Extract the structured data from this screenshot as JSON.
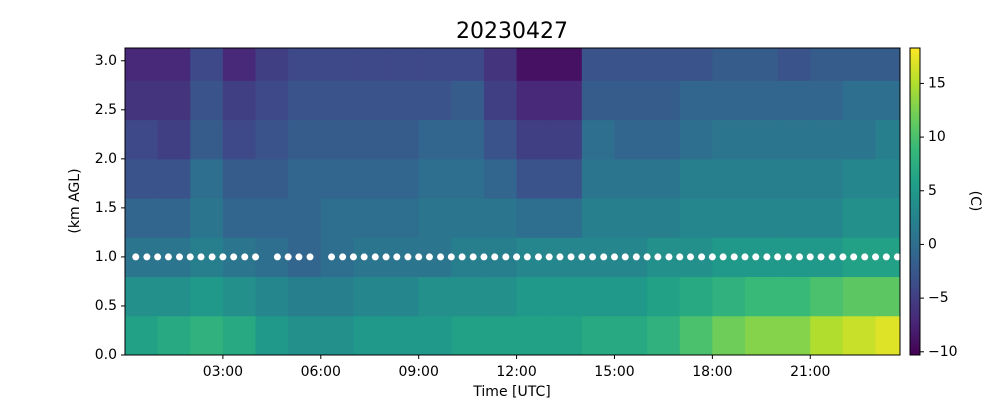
{
  "chart_data": {
    "type": "heatmap",
    "title": "20230427",
    "x_label": "Time [UTC]",
    "y_label": "(km AGL)",
    "colorbar_label": "(C)",
    "colormap": "viridis",
    "x_edges": [
      0,
      1,
      2,
      3,
      4,
      5,
      6,
      7,
      8,
      9,
      10,
      11,
      12,
      13,
      14,
      15,
      16,
      17,
      18,
      19,
      20,
      21,
      22,
      23,
      24
    ],
    "y_edges": [
      0,
      0.4,
      0.8,
      1.2,
      1.6,
      2.0,
      2.4,
      2.8,
      3.2
    ],
    "values": [
      [
        6,
        4,
        1,
        -1,
        -3,
        -4,
        -6,
        -7
      ],
      [
        7,
        4,
        1,
        -1,
        -3,
        -5,
        -6,
        -7
      ],
      [
        8,
        5,
        2,
        1,
        0,
        -2,
        -3,
        -4
      ],
      [
        7,
        4,
        1,
        -1,
        -2,
        -4,
        -5,
        -7
      ],
      [
        5,
        3,
        0,
        -1,
        -2,
        -3,
        -4,
        -5
      ],
      [
        4,
        2,
        -1,
        -1,
        -1,
        -2,
        -3,
        -4
      ],
      [
        4,
        2,
        0,
        0,
        -1,
        -2,
        -3,
        -4
      ],
      [
        5,
        3,
        1,
        0,
        -1,
        -2,
        -3,
        -4
      ],
      [
        5,
        3,
        1,
        0,
        -1,
        -2,
        -3,
        -4
      ],
      [
        5,
        4,
        1,
        1,
        0,
        -1,
        -3,
        -4
      ],
      [
        6,
        4,
        2,
        1,
        0,
        -1,
        -2,
        -4
      ],
      [
        6,
        4,
        2,
        1,
        -1,
        -3,
        -5,
        -6
      ],
      [
        6,
        5,
        3,
        0,
        -3,
        -5,
        -7,
        -9
      ],
      [
        6,
        5,
        3,
        0,
        -3,
        -5,
        -7,
        -9
      ],
      [
        7,
        5,
        3,
        2,
        1,
        0,
        -2,
        -3
      ],
      [
        7,
        5,
        3,
        2,
        1,
        -1,
        -2,
        -3
      ],
      [
        8,
        6,
        4,
        2,
        1,
        -1,
        -2,
        -3
      ],
      [
        10,
        7,
        4,
        3,
        2,
        0,
        -1,
        -3
      ],
      [
        12,
        8,
        5,
        3,
        2,
        1,
        -1,
        -2
      ],
      [
        13,
        9,
        5,
        3,
        2,
        1,
        -1,
        -2
      ],
      [
        13,
        9,
        5,
        3,
        2,
        1,
        -1,
        -3
      ],
      [
        15,
        10,
        5,
        3,
        2,
        1,
        -1,
        -2
      ],
      [
        16,
        11,
        6,
        4,
        3,
        1,
        0,
        -2
      ],
      [
        17,
        11,
        6,
        4,
        3,
        2,
        0,
        -2
      ]
    ],
    "clim": [
      -10.3,
      18.3
    ],
    "cticks": [
      {
        "value": -10,
        "label": "−10"
      },
      {
        "value": -5,
        "label": "−5"
      },
      0,
      5,
      10,
      15
    ],
    "xlim": [
      0,
      23.75
    ],
    "xticks": [
      {
        "value": 3,
        "label": "03:00"
      },
      {
        "value": 6,
        "label": "06:00"
      },
      {
        "value": 9,
        "label": "09:00"
      },
      {
        "value": 12,
        "label": "12:00"
      },
      {
        "value": 15,
        "label": "15:00"
      },
      {
        "value": 18,
        "label": "18:00"
      },
      {
        "value": 21,
        "label": "21:00"
      }
    ],
    "ylim": [
      0,
      3.13
    ],
    "yticks": [
      {
        "value": 0,
        "label": "0.0"
      },
      {
        "value": 0.5,
        "label": "0.5"
      },
      {
        "value": 1,
        "label": "1.0"
      },
      {
        "value": 1.5,
        "label": "1.5"
      },
      {
        "value": 2,
        "label": "2.0"
      },
      {
        "value": 2.5,
        "label": "2.5"
      },
      {
        "value": 3,
        "label": "3.0"
      }
    ],
    "markers": {
      "color": "#ffffff",
      "x": [
        0.33,
        0.67,
        1,
        1.33,
        1.67,
        2,
        2.33,
        2.67,
        3,
        3.33,
        3.67,
        4,
        4.67,
        5,
        5.33,
        5.67,
        6.33,
        6.67,
        7,
        7.33,
        7.67,
        8,
        8.33,
        8.67,
        9,
        9.33,
        9.67,
        10,
        10.33,
        10.67,
        11,
        11.33,
        11.67,
        12,
        12.33,
        12.67,
        13,
        13.33,
        13.67,
        14,
        14.33,
        14.67,
        15,
        15.33,
        15.67,
        16,
        16.33,
        16.67,
        17,
        17.33,
        17.67,
        18,
        18.33,
        18.67,
        19,
        19.33,
        19.67,
        20,
        20.33,
        20.67,
        21,
        21.33,
        21.67,
        22,
        22.33,
        22.67,
        23,
        23.33,
        23.67
      ],
      "values": [
        1,
        1,
        1,
        1,
        1,
        1,
        1,
        1,
        1,
        1,
        1,
        1,
        1,
        1,
        1,
        1,
        1,
        1,
        1,
        1,
        1,
        1,
        1,
        1,
        1,
        1,
        1,
        1,
        1,
        1,
        1,
        1,
        1,
        1,
        1,
        1,
        1,
        1,
        1,
        1,
        1,
        1,
        1,
        1,
        1,
        1,
        1,
        1,
        1,
        1,
        1,
        1,
        1,
        1,
        1,
        1,
        1,
        1,
        1,
        1,
        1,
        1,
        1,
        1,
        1,
        1,
        1,
        1,
        1
      ]
    }
  }
}
